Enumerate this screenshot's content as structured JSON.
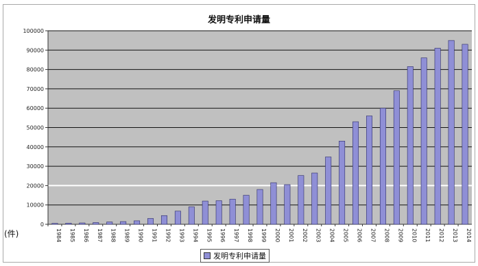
{
  "chart_data": {
    "type": "bar",
    "title": "发明专利申请量",
    "unit_label": "(件)",
    "legend": [
      "发明专利申请量"
    ],
    "categories": [
      "1984",
      "1985",
      "1986",
      "1987",
      "1988",
      "1989",
      "1990",
      "1991",
      "1992",
      "1993",
      "1994",
      "1995",
      "1996",
      "1997",
      "1998",
      "1999",
      "2000",
      "2001",
      "2002",
      "2003",
      "2004",
      "2005",
      "2006",
      "2007",
      "2008",
      "2009",
      "2010",
      "2011",
      "2012",
      "2013",
      "2014"
    ],
    "series": [
      {
        "name": "发明专利申请量",
        "values": [
          500,
          600,
          700,
          900,
          1200,
          1400,
          1800,
          3000,
          4500,
          6800,
          9000,
          12000,
          12200,
          13000,
          15000,
          18000,
          21500,
          20500,
          25200,
          26500,
          34800,
          43000,
          53000,
          56000,
          60000,
          69000,
          81500,
          86000,
          91000,
          95000,
          93000
        ]
      }
    ],
    "ylim": [
      0,
      100000
    ],
    "yticks": [
      0,
      10000,
      20000,
      30000,
      40000,
      50000,
      60000,
      70000,
      80000,
      90000,
      100000
    ],
    "grid": true,
    "legend_position": "bottom",
    "colors": {
      "bar": "#8f8fd6",
      "plot_bg": "#c0c0c0",
      "gridline": "#111111",
      "highlight_gridline": "#ffffff"
    }
  }
}
